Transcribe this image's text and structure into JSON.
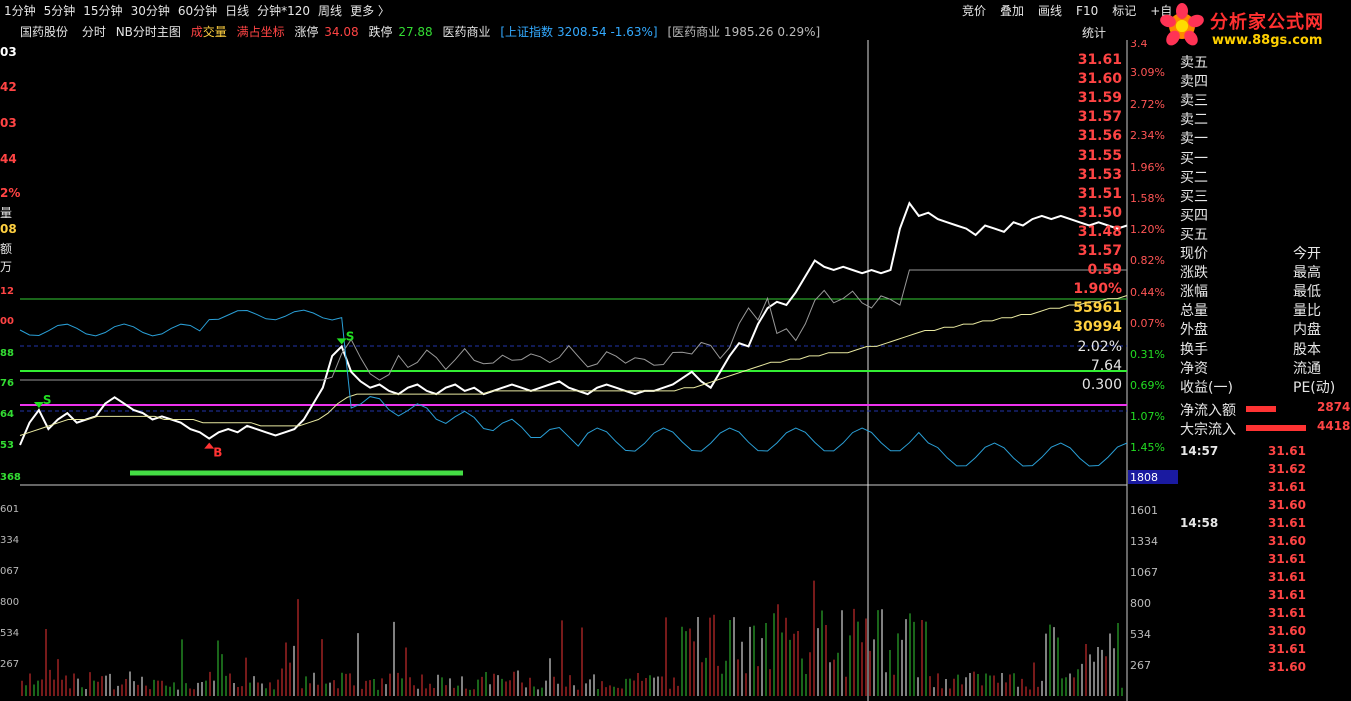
{
  "toolbar": {
    "periods": [
      "1分钟",
      "5分钟",
      "15分钟",
      "30分钟",
      "60分钟",
      "日线",
      "分钟*120",
      "周线",
      "更多 〉"
    ],
    "right": [
      "竞价",
      "叠加",
      "画线",
      "F10",
      "标记",
      "+自"
    ]
  },
  "info": {
    "stock_name": "国药股份",
    "mode": "分时",
    "indicator": "NB分时主图",
    "chengjiao_a": "成",
    "chengjiao_b": "交量",
    "coord": "满占坐标",
    "limit_up_label": "涨停",
    "limit_up": "34.08",
    "limit_down_label": "跌停",
    "limit_down": "27.88",
    "sector": "医药商业",
    "index_label": "[上证指数",
    "index_value": "3208.54 -1.63%]",
    "sector_value": "[医药商业 1985.26 0.29%]",
    "stats": "统计"
  },
  "logo": {
    "name": "分析家公式网",
    "url": "www.88gs.com"
  },
  "left_axis": {
    "price_labels": [
      "03",
      "42",
      "03",
      "44"
    ],
    "pct_label": "2%",
    "vol_label": "量",
    "vol_value": "08",
    "amt_label": "额",
    "amt_unit": "万",
    "lower_labels": [
      "12",
      "00",
      "88",
      "76",
      "64",
      "53",
      "368"
    ],
    "vol_ticks": [
      "601",
      "334",
      "067",
      "800",
      "534",
      "267"
    ]
  },
  "chart_data": {
    "type": "line",
    "title": "",
    "xlabel": "",
    "ylabel": "",
    "right_pct_ticks": [
      "3.4",
      "3.09%",
      "2.72%",
      "2.34%",
      "1.96%",
      "1.58%",
      "1.20%",
      "0.82%",
      "0.44%",
      "0.07%",
      "0.31%",
      "0.69%",
      "1.07%",
      "1.45%"
    ],
    "right_pct_colors": [
      "#ff5555",
      "#ff5555",
      "#ff5555",
      "#ff5555",
      "#ff5555",
      "#ff5555",
      "#ff5555",
      "#ff5555",
      "#ff5555",
      "#ff5555",
      "#22dd22",
      "#22dd22",
      "#22dd22",
      "#22dd22"
    ],
    "volume_scale_label": "1808",
    "volume_ticks": [
      "1601",
      "1334",
      "1067",
      "800",
      "534",
      "267"
    ],
    "volume_ylim": [
      0,
      1808
    ],
    "price_ylim": [
      30.71,
      32.03
    ],
    "signals": [
      {
        "label": "S",
        "color": "#22dd22",
        "index": 34
      },
      {
        "label": "B",
        "color": "#ff3333",
        "index": 20
      },
      {
        "label": "S",
        "color": "#22dd22",
        "index": 2
      }
    ],
    "series": [
      {
        "name": "",
        "color": "#ffffff",
        "values": [
          30.82,
          30.89,
          30.93,
          30.87,
          30.9,
          30.92,
          30.89,
          30.9,
          30.91,
          30.95,
          30.97,
          30.95,
          30.93,
          30.92,
          30.9,
          30.91,
          30.9,
          30.89,
          30.87,
          30.86,
          30.84,
          30.86,
          30.87,
          30.86,
          30.88,
          30.87,
          30.86,
          30.85,
          30.86,
          30.87,
          30.9,
          30.95,
          31.0,
          31.1,
          31.13,
          31.05,
          31.02,
          31.0,
          31.01,
          30.99,
          30.98,
          31.0,
          31.01,
          30.99,
          30.98,
          31.0,
          31.01,
          30.99,
          31.0,
          30.98,
          30.99,
          31.0,
          31.01,
          31.0,
          30.99,
          31.0,
          31.01,
          31.02,
          31.0,
          30.99,
          30.98,
          31.0,
          31.01,
          31.0,
          30.99,
          30.98,
          30.99,
          30.99,
          31.0,
          31.01,
          31.03,
          31.05,
          31.02,
          31.0,
          31.05,
          31.1,
          31.14,
          31.13,
          31.2,
          31.25,
          31.27,
          31.26,
          31.3,
          31.35,
          31.4,
          31.38,
          31.37,
          31.38,
          31.37,
          31.36,
          31.37,
          31.36,
          31.37,
          31.5,
          31.58,
          31.54,
          31.55,
          31.53,
          31.52,
          31.51,
          31.5,
          31.48,
          31.51,
          31.5,
          31.49,
          31.52,
          31.51,
          31.53,
          31.54,
          31.53,
          31.54,
          31.53,
          31.52,
          31.51,
          31.52,
          31.51,
          31.5,
          31.51
        ]
      },
      {
        "name": "",
        "color": "#e8e8a0",
        "values": [
          30.85,
          30.86,
          30.87,
          30.88,
          30.89,
          30.9,
          30.9,
          30.9,
          30.91,
          30.91,
          30.91,
          30.91,
          30.91,
          30.91,
          30.91,
          30.9,
          30.9,
          30.9,
          30.9,
          30.89,
          30.89,
          30.89,
          30.89,
          30.89,
          30.89,
          30.88,
          30.88,
          30.88,
          30.88,
          30.88,
          30.89,
          30.9,
          30.92,
          30.95,
          30.97,
          30.98,
          30.98,
          30.98,
          30.98,
          30.98,
          30.98,
          30.98,
          30.98,
          30.98,
          30.98,
          30.98,
          30.98,
          30.98,
          30.98,
          30.99,
          30.99,
          30.99,
          30.99,
          30.99,
          30.99,
          30.99,
          30.99,
          30.99,
          30.99,
          30.99,
          30.99,
          30.99,
          30.99,
          30.99,
          30.99,
          30.99,
          30.99,
          30.99,
          30.99,
          31.0,
          31.0,
          31.01,
          31.02,
          31.03,
          31.04,
          31.05,
          31.06,
          31.07,
          31.08,
          31.08,
          31.09,
          31.09,
          31.1,
          31.1,
          31.11,
          31.11,
          31.11,
          31.12,
          31.13,
          31.13,
          31.14,
          31.15,
          31.16,
          31.17,
          31.18,
          31.18,
          31.19,
          31.19,
          31.2,
          31.2,
          31.21,
          31.21,
          31.22,
          31.22,
          31.23,
          31.23,
          31.24,
          31.25,
          31.25,
          31.26,
          31.26,
          31.27,
          31.27,
          31.28,
          31.28,
          31.29
        ]
      }
    ]
  },
  "panel": {
    "rows": [
      {
        "label": "卖五",
        "value": "31.61",
        "right": ""
      },
      {
        "label": "卖四",
        "value": "31.60",
        "right": ""
      },
      {
        "label": "卖三",
        "value": "31.59",
        "right": ""
      },
      {
        "label": "卖二",
        "value": "31.57",
        "right": ""
      },
      {
        "label": "卖一",
        "value": "31.56",
        "right": ""
      },
      {
        "label": "买一",
        "value": "31.55",
        "right": ""
      },
      {
        "label": "买二",
        "value": "31.53",
        "right": ""
      },
      {
        "label": "买三",
        "value": "31.51",
        "right": ""
      },
      {
        "label": "买四",
        "value": "31.50",
        "right": ""
      },
      {
        "label": "买五",
        "value": "31.48",
        "right": ""
      },
      {
        "label": "现价",
        "value": "31.57",
        "right": "今开"
      },
      {
        "label": "涨跌",
        "value": "0.59",
        "right": "最高"
      },
      {
        "label": "涨幅",
        "value": "1.90%",
        "right": "最低"
      },
      {
        "label": "总量",
        "value": "55961",
        "right": "量比"
      },
      {
        "label": "外盘",
        "value": "30994",
        "right": "内盘"
      },
      {
        "label": "换手",
        "value": "2.02%",
        "right": "股本"
      },
      {
        "label": "净资",
        "value": "7.64",
        "right": "流通"
      },
      {
        "label": "收益(一)",
        "value": "0.300",
        "right": "PE(动)"
      }
    ],
    "flows": [
      {
        "label": "净流入额",
        "value": "2874",
        "bar": 0.3
      },
      {
        "label": "大宗流入",
        "value": "4418",
        "bar": 0.6
      }
    ],
    "ticks": [
      {
        "time": "14:57",
        "price": "31.61"
      },
      {
        "time": "",
        "price": "31.62"
      },
      {
        "time": "",
        "price": "31.61"
      },
      {
        "time": "",
        "price": "31.60"
      },
      {
        "time": "14:58",
        "price": "31.61"
      },
      {
        "time": "",
        "price": "31.60"
      },
      {
        "time": "",
        "price": "31.61"
      },
      {
        "time": "",
        "price": "31.61"
      },
      {
        "time": "",
        "price": "31.61"
      },
      {
        "time": "",
        "price": "31.61"
      },
      {
        "time": "",
        "price": "31.60"
      },
      {
        "time": "",
        "price": "31.61"
      },
      {
        "time": "",
        "price": "31.60"
      }
    ]
  }
}
